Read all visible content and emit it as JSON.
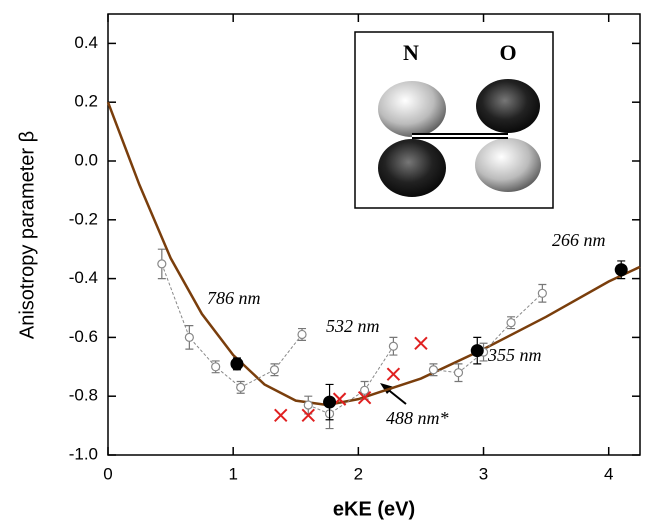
{
  "chart_data": {
    "type": "scatter",
    "x_label": "eKE (eV)",
    "y_label": "Anisotropy parameter β",
    "xlim": [
      0,
      4.25
    ],
    "ylim": [
      -1.0,
      0.5
    ],
    "xticks": [
      0,
      1,
      2,
      3,
      4
    ],
    "yticks": [
      0.4,
      0.2,
      {
        "value": 0,
        "label": "0.0"
      },
      -0.2,
      -0.4,
      -0.6,
      -0.8,
      {
        "value": -1,
        "label": "-1.0"
      }
    ],
    "series": [
      {
        "color": "#7a3e0c",
        "marker": "none",
        "linestyle": "solid",
        "x": [
          0,
          0.25,
          0.5,
          0.75,
          1.0,
          1.25,
          1.5,
          1.75,
          2.0,
          2.5,
          3.0,
          3.5,
          4.0,
          4.25
        ],
        "values": [
          0.2,
          -0.08,
          -0.33,
          -0.52,
          -0.66,
          -0.76,
          -0.815,
          -0.83,
          -0.81,
          -0.74,
          -0.64,
          -0.53,
          -0.41,
          -0.36
        ]
      },
      {
        "color": "#888888",
        "marker": "open-circle",
        "linestyle": "dashed",
        "x": [
          0.43,
          0.65,
          0.86,
          1.06,
          1.33,
          1.55
        ],
        "values": [
          -0.35,
          -0.6,
          -0.7,
          -0.77,
          -0.71,
          -0.59
        ],
        "errors": [
          0.05,
          0.04,
          0.02,
          0.02,
          0.02,
          0.02
        ]
      },
      {
        "color": "#888888",
        "marker": "open-circle",
        "linestyle": "dashed",
        "x": [
          1.6,
          1.77,
          2.05,
          2.28
        ],
        "values": [
          -0.83,
          -0.86,
          -0.78,
          -0.63
        ],
        "errors": [
          0.03,
          0.05,
          0.03,
          0.03
        ]
      },
      {
        "color": "#888888",
        "marker": "open-circle",
        "linestyle": "dashed",
        "x": [
          2.6,
          2.8,
          3.0,
          3.22,
          3.47
        ],
        "values": [
          -0.71,
          -0.72,
          -0.65,
          -0.55,
          -0.45
        ],
        "errors": [
          0.02,
          0.03,
          0.03,
          0.02,
          0.03
        ]
      },
      {
        "color": "#e02020",
        "marker": "cross",
        "linestyle": "none",
        "x": [
          1.38,
          1.6,
          1.85,
          2.05,
          2.28,
          2.5
        ],
        "values": [
          -0.865,
          -0.865,
          -0.81,
          -0.805,
          -0.725,
          -0.62
        ]
      },
      {
        "color": "#000000",
        "marker": "filled-circle",
        "linestyle": "none",
        "x": [
          1.03,
          1.77,
          2.95,
          4.1
        ],
        "values": [
          -0.69,
          -0.82,
          -0.645,
          -0.37
        ],
        "errors": [
          0.02,
          0.06,
          0.045,
          0.03
        ]
      }
    ],
    "annotations": [
      "786 nm",
      "532 nm",
      "355 nm",
      "266 nm",
      "488 nm*"
    ],
    "inset_labels": [
      "N",
      "O"
    ]
  }
}
